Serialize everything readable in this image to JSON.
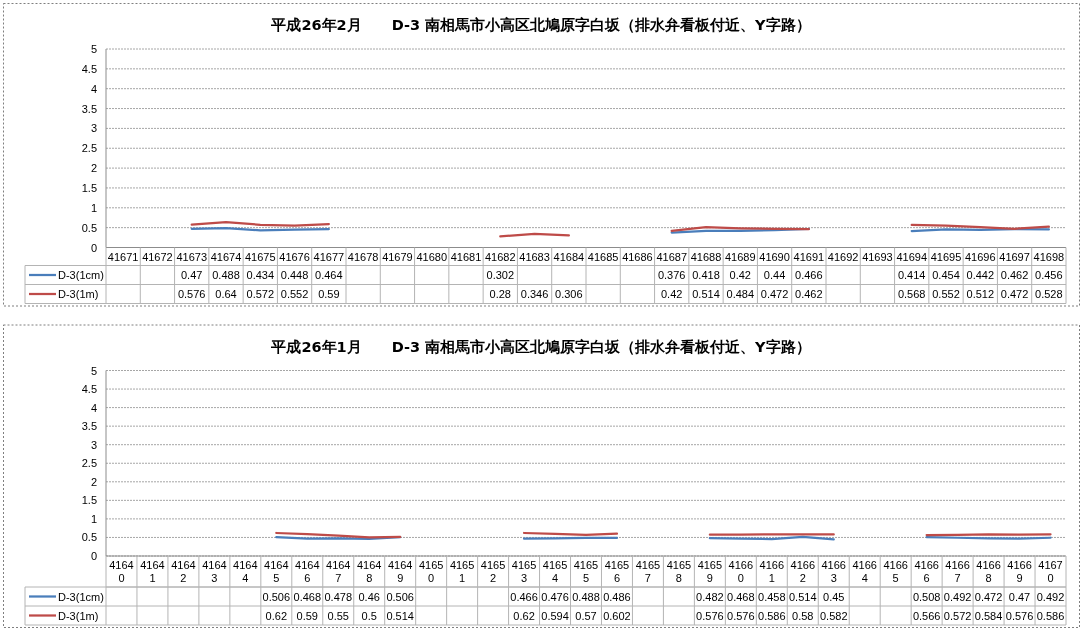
{
  "chart_data": [
    {
      "type": "line",
      "title": "平成26年2月　　D-3 南相馬市小高区北鳩原字白坂（排水弁看板付近、Y字路）",
      "categories": [
        "41671",
        "41672",
        "41673",
        "41674",
        "41675",
        "41676",
        "41677",
        "41678",
        "41679",
        "41680",
        "41681",
        "41682",
        "41683",
        "41684",
        "41685",
        "41686",
        "41687",
        "41688",
        "41689",
        "41690",
        "41691",
        "41692",
        "41693",
        "41694",
        "41695",
        "41696",
        "41697",
        "41698"
      ],
      "series": [
        {
          "name": "D-3(1cm)",
          "color": "#4a7ebb",
          "values": [
            null,
            null,
            0.47,
            0.488,
            0.434,
            0.448,
            0.464,
            null,
            null,
            null,
            null,
            null,
            null,
            null,
            null,
            null,
            0.376,
            0.418,
            0.42,
            0.44,
            0.466,
            null,
            null,
            0.414,
            0.454,
            0.442,
            0.462,
            0.456
          ],
          "value_labels": [
            null,
            null,
            "0.47",
            "0.488",
            "0.434",
            "0.448",
            "0.464",
            null,
            null,
            null,
            null,
            "0.302",
            null,
            null,
            null,
            null,
            "0.376",
            "0.418",
            "0.42",
            "0.44",
            "0.466",
            null,
            null,
            "0.414",
            "0.454",
            "0.442",
            "0.462",
            "0.456"
          ]
        },
        {
          "name": "D-3(1m)",
          "color": "#be4b48",
          "values": [
            null,
            null,
            0.576,
            0.64,
            0.572,
            0.552,
            0.59,
            null,
            null,
            null,
            null,
            0.28,
            0.346,
            0.306,
            null,
            null,
            0.42,
            0.514,
            0.484,
            0.472,
            0.462,
            null,
            null,
            0.568,
            0.552,
            0.512,
            0.472,
            0.528
          ]
        }
      ],
      "ylim": [
        0,
        5
      ],
      "yticks": [
        0,
        0.5,
        1,
        1.5,
        2,
        2.5,
        3,
        3.5,
        4,
        4.5,
        5
      ],
      "grid": "y",
      "legend": "bottom left",
      "data_labels": true
    },
    {
      "type": "line",
      "title": "平成26年1月　　D-3 南相馬市小高区北鳩原字白坂（排水弁看板付近、Y字路）",
      "categories": [
        "41640",
        "41641",
        "41642",
        "41643",
        "41644",
        "41645",
        "41646",
        "41647",
        "41648",
        "41649",
        "41650",
        "41651",
        "41652",
        "41653",
        "41654",
        "41655",
        "41656",
        "41657",
        "41658",
        "41659",
        "41660",
        "41661",
        "41662",
        "41663",
        "41664",
        "41665",
        "41666",
        "41667",
        "41668",
        "41669",
        "41670"
      ],
      "series": [
        {
          "name": "D-3(1cm)",
          "color": "#4a7ebb",
          "values": [
            null,
            null,
            null,
            null,
            null,
            0.506,
            0.468,
            0.478,
            0.46,
            0.506,
            null,
            null,
            null,
            0.466,
            0.476,
            0.488,
            0.486,
            null,
            null,
            0.482,
            0.468,
            0.458,
            0.514,
            0.45,
            null,
            null,
            0.508,
            0.492,
            0.472,
            0.47,
            0.492
          ]
        },
        {
          "name": "D-3(1m)",
          "color": "#be4b48",
          "values": [
            null,
            null,
            null,
            null,
            null,
            0.62,
            0.59,
            0.55,
            0.5,
            0.514,
            null,
            null,
            null,
            0.62,
            0.594,
            0.57,
            0.602,
            null,
            null,
            0.576,
            0.576,
            0.586,
            0.58,
            0.582,
            null,
            null,
            0.566,
            0.572,
            0.584,
            0.576,
            0.586
          ]
        }
      ],
      "ylim": [
        0,
        5
      ],
      "yticks": [
        0,
        0.5,
        1,
        1.5,
        2,
        2.5,
        3,
        3.5,
        4,
        4.5,
        5
      ],
      "grid": "y",
      "legend": "bottom left",
      "data_labels": true
    }
  ]
}
